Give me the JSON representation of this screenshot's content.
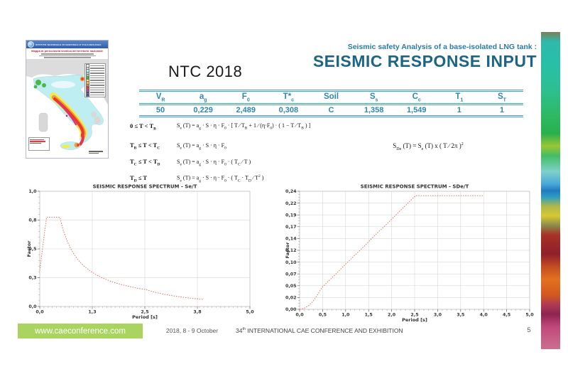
{
  "slide": {
    "subtitle": "Seismic safety Analysis of a base-isolated LNG tank :",
    "title": "SEISMIC RESPONSE INPUT",
    "section_label": "NTC 2018",
    "page_number": "5",
    "footer": {
      "website": "www.caeconference.com",
      "date": "2018, 8 -  9 October",
      "conference": "34^(th) INTERNATIONAL CAE CONFERENCE AND EXHIBITION",
      "banner_green": "#a8d45f"
    },
    "colors": {
      "title_teal": "#1d6585",
      "table_teal": "#2f87ae",
      "table_border": "#41a4cc",
      "curve_red": "#e06a5a"
    }
  },
  "map": {
    "agency": "ISTITUTO NAZIONALE DI GEOFISICA E VULCANOLOGIA",
    "map_title": "Mappa di pericolosità sismica del territorio nazionale",
    "legend_colors": [
      "#ffffff",
      "#d8d8d8",
      "#bfeef2",
      "#9fd8ef",
      "#8fd18a",
      "#3fae49",
      "#f7ec6a",
      "#f5b942",
      "#ef7a24",
      "#e63226",
      "#d92a8e",
      "#7c2a84",
      "#3a53a4"
    ]
  },
  "table": {
    "headers": [
      "V_(R)",
      "a_(g)",
      "F_(0)",
      "T*_(c)",
      "Soil",
      "S_(s)",
      "C_(c)",
      "T_(1)",
      "S_(T)"
    ],
    "values": [
      "50",
      "0,229",
      "2,489",
      "0,308",
      "C",
      "1,358",
      "1,549",
      "1",
      "1"
    ]
  },
  "formulas": {
    "rows": [
      {
        "condition": "0 ≤ T < T_(B)",
        "expression": "S_(e) (T) = a_(g) · S · η · F_(0) · [ T ∕ T_(B) + 1 ∕ (η·F_(0)) · ( 1 − T ∕ T_(B) ) ]"
      },
      {
        "condition": "T_(B) ≤ T < T_(C)",
        "expression": "S_(e) (T) = a_(g) · S · η · F_(0)"
      },
      {
        "condition": "T_(C) ≤ T < T_(D)",
        "expression": "S_(e) (T) = a_(g) · S · η · F_(0) · ( T_(C) ∕ T )"
      },
      {
        "condition": "T_(D) ≤ T",
        "expression": "S_(e) (T) = a_(g) · S · η · F_(0) · ( T_(C) · T_(D) ∕ T^(2) )"
      }
    ],
    "displacement": "S_(De) (T) = S_(e) (T)  x  ( T ∕ 2π )^(2)"
  },
  "chart_data": [
    {
      "type": "line",
      "title": "SEISMIC RESPONSE  SPECTRUM - Se/T",
      "xlabel": "Period [s]",
      "ylabel": "Factor",
      "xlim": [
        0,
        5
      ],
      "ylim": [
        0,
        1
      ],
      "grid": true,
      "legend": "none",
      "color": "#e06a5a",
      "x_ticks": {
        "values": [
          0,
          1.25,
          2.5,
          3.75,
          5
        ],
        "labels": [
          "0,0",
          "1,3",
          "2,5",
          "3,8",
          "5,0"
        ],
        "minor_step": 0.1
      },
      "y_ticks": {
        "values": [
          0,
          0.25,
          0.5,
          0.75,
          1
        ],
        "labels": [
          "0,0",
          "0,3",
          "0,5",
          "0,8",
          "1,0"
        ],
        "minor_step": 0.05
      },
      "series": [
        {
          "name": "Se(T)",
          "points": [
            [
              0,
              0.311
            ],
            [
              0.16,
              0.774
            ],
            [
              0.48,
              0.774
            ],
            [
              0.55,
              0.671
            ],
            [
              0.65,
              0.568
            ],
            [
              0.75,
              0.492
            ],
            [
              0.85,
              0.434
            ],
            [
              0.95,
              0.389
            ],
            [
              1.05,
              0.352
            ],
            [
              1.2,
              0.308
            ],
            [
              1.35,
              0.273
            ],
            [
              1.5,
              0.246
            ],
            [
              1.7,
              0.217
            ],
            [
              1.9,
              0.194
            ],
            [
              2.1,
              0.176
            ],
            [
              2.3,
              0.16
            ],
            [
              2.52,
              0.147
            ],
            [
              2.7,
              0.127
            ],
            [
              2.9,
              0.11
            ],
            [
              3.1,
              0.097
            ],
            [
              3.3,
              0.085
            ],
            [
              3.5,
              0.076
            ],
            [
              3.7,
              0.068
            ],
            [
              3.9,
              0.061
            ]
          ]
        }
      ]
    },
    {
      "type": "line",
      "title": "SEISMIC RESPONSE  SPECTRUM - SDe/T",
      "xlabel": "Period [s]",
      "ylabel": "Factor",
      "xlim": [
        0,
        5
      ],
      "ylim": [
        0,
        0.24
      ],
      "grid": true,
      "legend": "none",
      "color": "#e06a5a",
      "x_ticks": {
        "values": [
          0,
          0.5,
          1,
          1.5,
          2,
          2.5,
          3,
          3.5,
          4,
          4.5,
          5
        ],
        "labels": [
          "0,0",
          "0,5",
          "1,0",
          "1,5",
          "2,0",
          "2,5",
          "3,0",
          "3,5",
          "4,0",
          "4,5",
          "5,0"
        ],
        "minor_step": 0.1
      },
      "y_ticks": {
        "values": [
          0,
          0.024,
          0.048,
          0.072,
          0.096,
          0.12,
          0.144,
          0.168,
          0.192,
          0.216,
          0.24
        ],
        "labels": [
          "0,00",
          "0,02",
          "0,05",
          "0,07",
          "0,10",
          "0,12",
          "0,14",
          "0,17",
          "0,19",
          "0,22",
          "0,24"
        ],
        "minor_step": 0.006
      },
      "series": [
        {
          "name": "SDe(T)",
          "points": [
            [
              0,
              0
            ],
            [
              0.1,
              0.002
            ],
            [
              0.2,
              0.008
            ],
            [
              0.3,
              0.017
            ],
            [
              0.4,
              0.031
            ],
            [
              0.48,
              0.044
            ],
            [
              0.6,
              0.055
            ],
            [
              0.8,
              0.073
            ],
            [
              1,
              0.092
            ],
            [
              1.2,
              0.11
            ],
            [
              1.4,
              0.128
            ],
            [
              1.6,
              0.147
            ],
            [
              1.8,
              0.165
            ],
            [
              2,
              0.183
            ],
            [
              2.2,
              0.202
            ],
            [
              2.4,
              0.22
            ],
            [
              2.52,
              0.231
            ],
            [
              2.8,
              0.231
            ],
            [
              3.2,
              0.231
            ],
            [
              3.6,
              0.231
            ],
            [
              4,
              0.231
            ]
          ]
        }
      ]
    }
  ]
}
